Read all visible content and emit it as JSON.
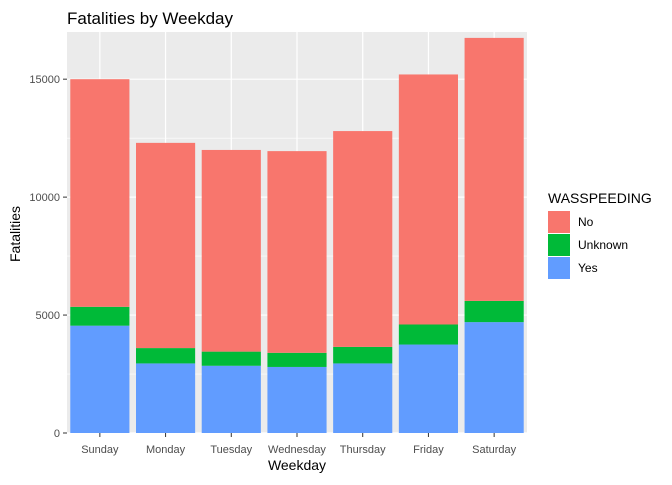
{
  "chart_data": {
    "type": "bar",
    "stacked": true,
    "title": "Fatalities by Weekday",
    "xlabel": "Weekday",
    "ylabel": "Fatalities",
    "categories": [
      "Sunday",
      "Monday",
      "Tuesday",
      "Wednesday",
      "Thursday",
      "Friday",
      "Saturday"
    ],
    "ylim": [
      0,
      17000
    ],
    "yticks": [
      0,
      5000,
      10000,
      15000
    ],
    "ytick_labels": [
      "0",
      "5000",
      "10000",
      "15000"
    ],
    "series": [
      {
        "name": "Yes",
        "color": "#619CFF",
        "values": [
          4550,
          2950,
          2850,
          2800,
          2950,
          3750,
          4700
        ]
      },
      {
        "name": "Unknown",
        "color": "#00BA38",
        "values": [
          800,
          650,
          600,
          600,
          700,
          850,
          900
        ]
      },
      {
        "name": "No",
        "color": "#F8766D",
        "values": [
          9650,
          8700,
          8550,
          8550,
          9150,
          10600,
          11150
        ]
      }
    ],
    "legend": {
      "title": "WASSPEEDING",
      "position": "right",
      "entries": [
        {
          "label": "No",
          "color": "#F8766D"
        },
        {
          "label": "Unknown",
          "color": "#00BA38"
        },
        {
          "label": "Yes",
          "color": "#619CFF"
        }
      ]
    },
    "grid": true,
    "panel_background": "#EBEBEB"
  }
}
